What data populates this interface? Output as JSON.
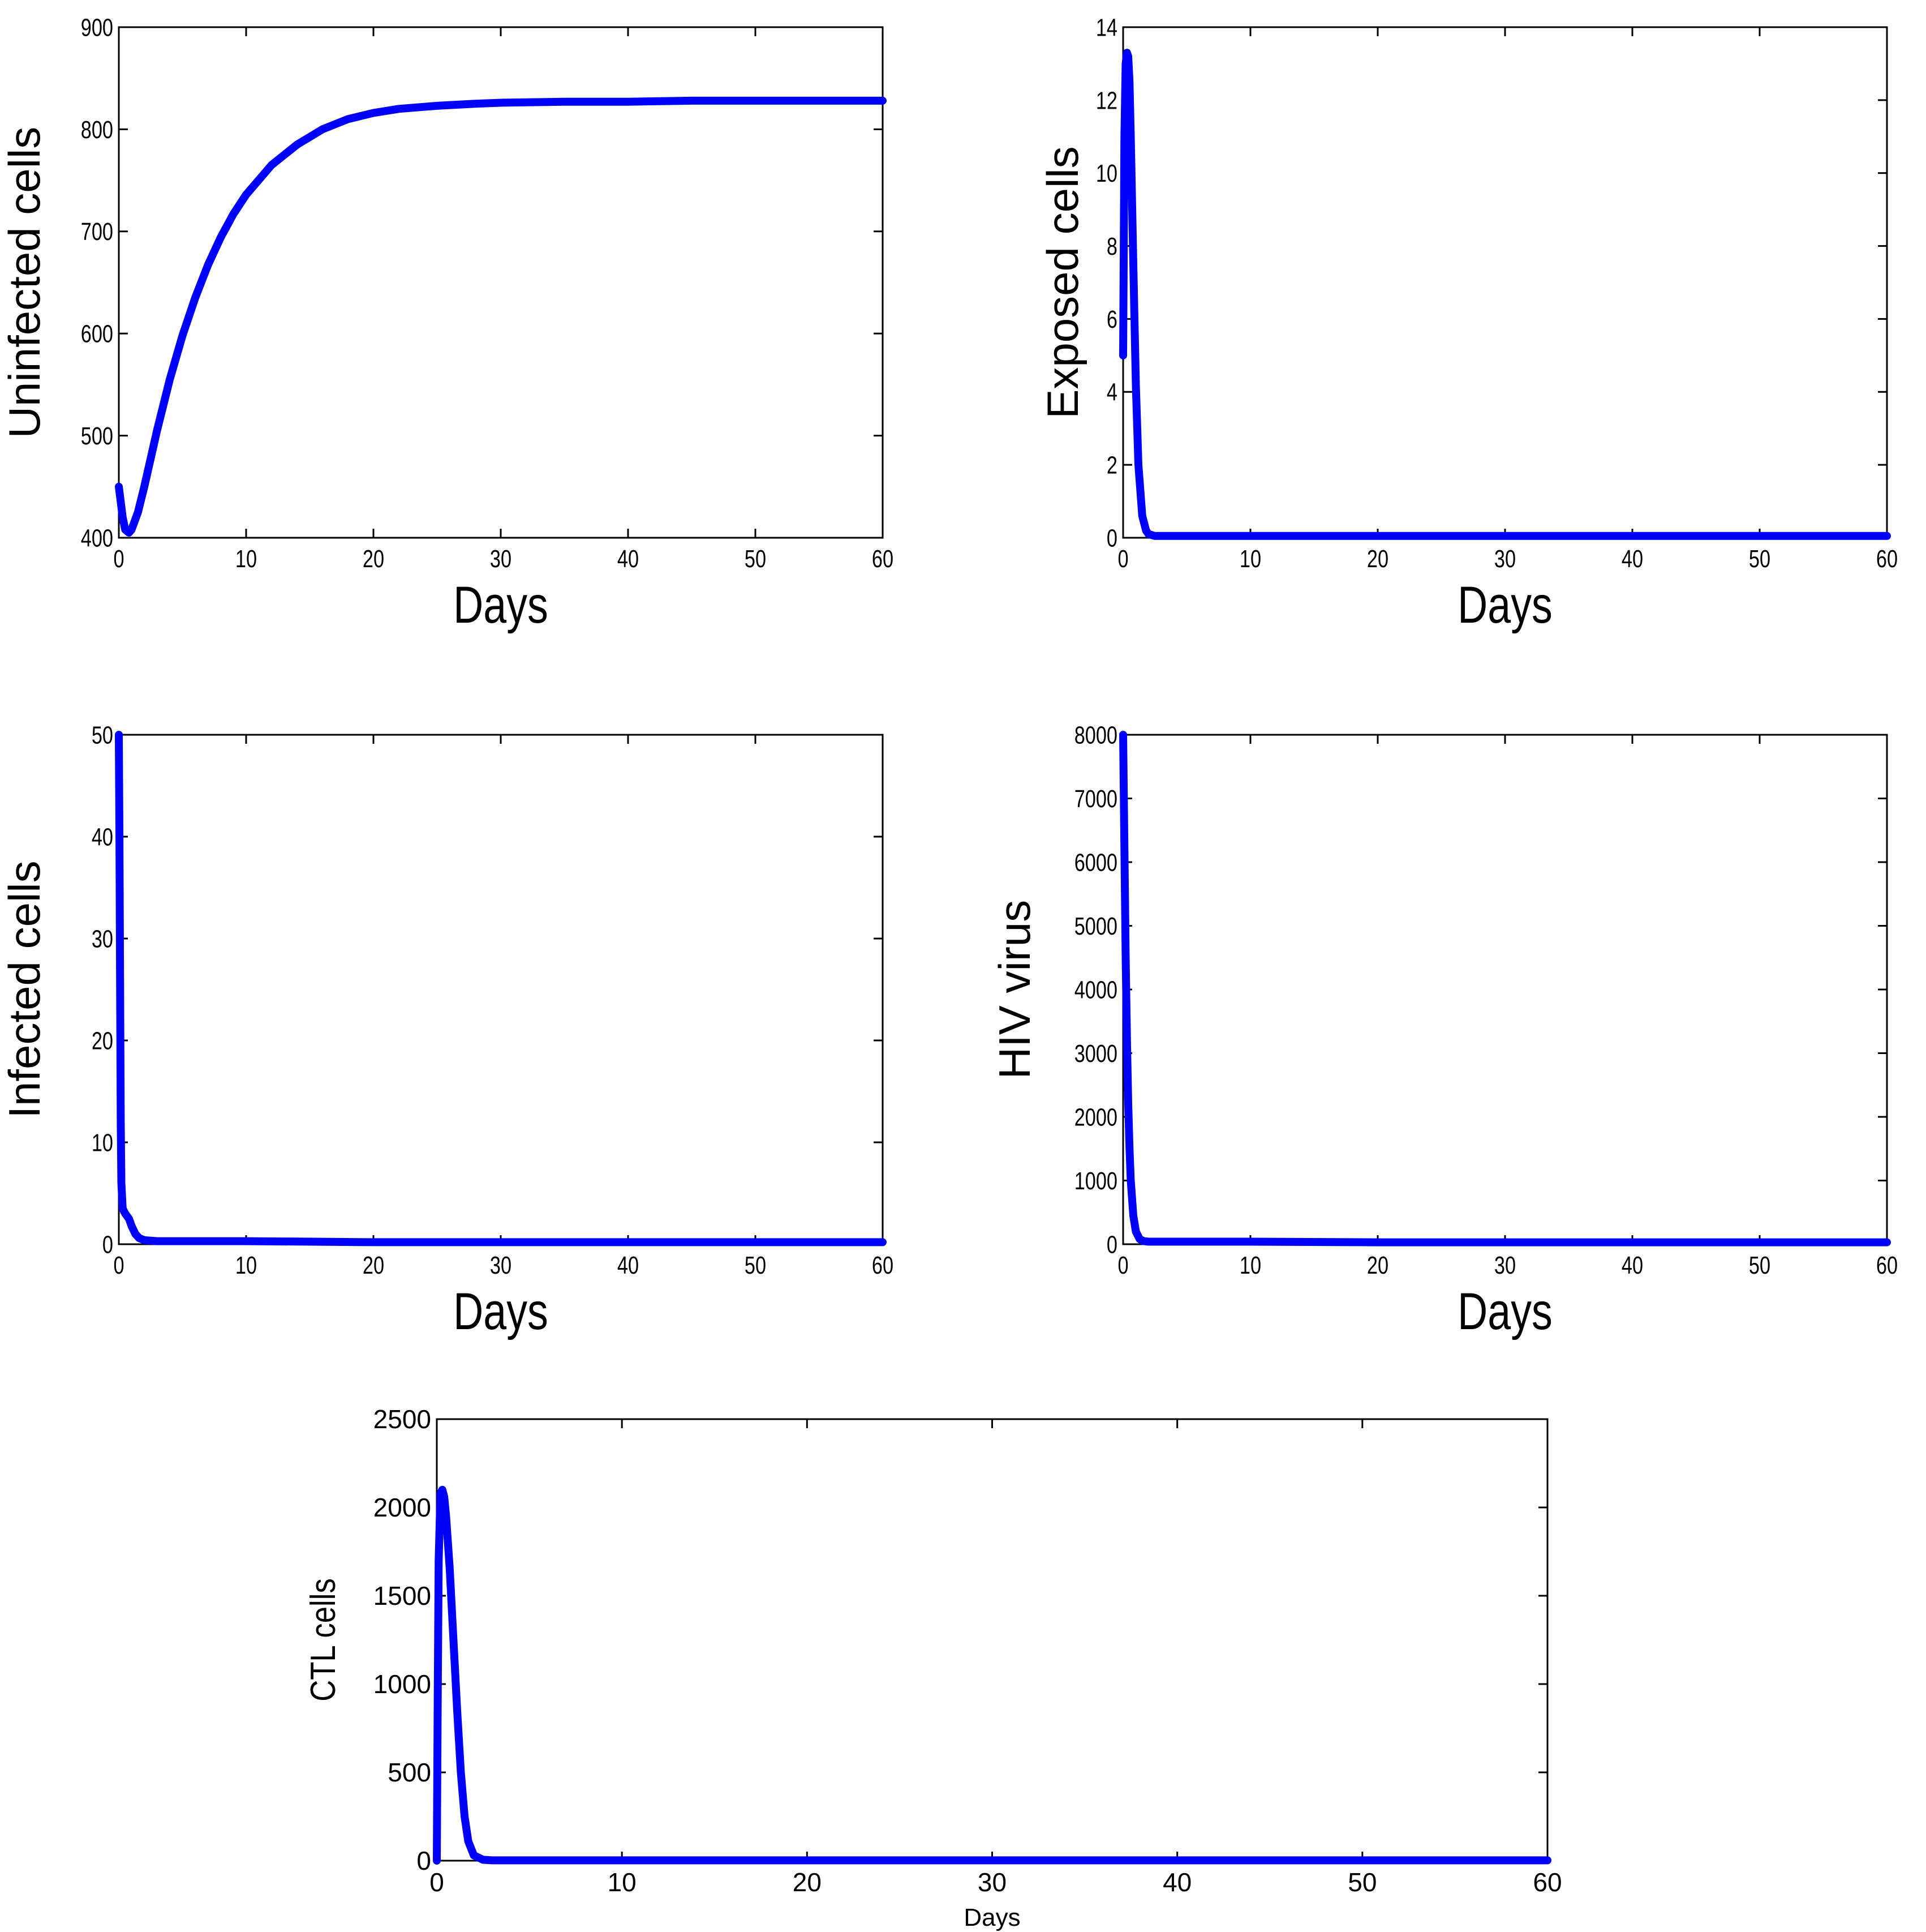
{
  "chart_data": [
    {
      "id": "uninfected",
      "type": "line",
      "title": "",
      "xlabel": "Days",
      "ylabel": "Uninfected cells",
      "xlim": [
        0,
        60
      ],
      "ylim": [
        400,
        900
      ],
      "xticks": [
        0,
        10,
        20,
        30,
        40,
        50,
        60
      ],
      "yticks": [
        400,
        500,
        600,
        700,
        800,
        900
      ],
      "grid": false,
      "series": [
        {
          "name": "Uninfected cells",
          "color": "#0000ff",
          "x": [
            0,
            0.3,
            0.5,
            0.8,
            1,
            1.5,
            2,
            3,
            4,
            5,
            6,
            7,
            8,
            9,
            10,
            12,
            14,
            16,
            18,
            20,
            22,
            25,
            28,
            30,
            35,
            40,
            45,
            50,
            55,
            60
          ],
          "y": [
            450,
            420,
            408,
            405,
            408,
            425,
            450,
            505,
            555,
            598,
            635,
            667,
            694,
            717,
            736,
            765,
            785,
            800,
            810,
            816,
            820,
            823,
            825,
            826,
            827,
            827,
            828,
            828,
            828,
            828
          ]
        }
      ]
    },
    {
      "id": "exposed",
      "type": "line",
      "title": "",
      "xlabel": "Days",
      "ylabel": "Exposed cells",
      "xlim": [
        0,
        60
      ],
      "ylim": [
        0,
        14
      ],
      "xticks": [
        0,
        10,
        20,
        30,
        40,
        50,
        60
      ],
      "yticks": [
        0,
        2,
        4,
        6,
        8,
        10,
        12,
        14
      ],
      "grid": false,
      "series": [
        {
          "name": "Exposed cells",
          "color": "#0000ff",
          "x": [
            0,
            0.1,
            0.2,
            0.3,
            0.4,
            0.5,
            0.6,
            0.8,
            1,
            1.2,
            1.5,
            1.8,
            2,
            2.5,
            3,
            5,
            10,
            20,
            30,
            40,
            50,
            60
          ],
          "y": [
            5,
            11,
            13,
            13.3,
            13.2,
            12.5,
            11,
            7.5,
            4.2,
            2,
            0.6,
            0.2,
            0.1,
            0.05,
            0.05,
            0.05,
            0.05,
            0.05,
            0.05,
            0.05,
            0.05,
            0.05
          ]
        }
      ]
    },
    {
      "id": "infected",
      "type": "line",
      "title": "",
      "xlabel": "Days",
      "ylabel": "Infected cells",
      "xlim": [
        0,
        60
      ],
      "ylim": [
        0,
        50
      ],
      "xticks": [
        0,
        10,
        20,
        30,
        40,
        50,
        60
      ],
      "yticks": [
        0,
        10,
        20,
        30,
        40,
        50
      ],
      "grid": false,
      "series": [
        {
          "name": "Infected cells",
          "color": "#0000ff",
          "x": [
            0,
            0.05,
            0.1,
            0.15,
            0.2,
            0.3,
            0.5,
            0.8,
            1,
            1.3,
            1.6,
            2,
            3,
            5,
            10,
            20,
            30,
            40,
            50,
            60
          ],
          "y": [
            50,
            40,
            25,
            12,
            6,
            3.5,
            3,
            2.5,
            1.8,
            1,
            0.6,
            0.4,
            0.3,
            0.3,
            0.3,
            0.2,
            0.2,
            0.2,
            0.2,
            0.2
          ]
        }
      ]
    },
    {
      "id": "hiv",
      "type": "line",
      "title": "",
      "xlabel": "Days",
      "ylabel": "HIV virus",
      "xlim": [
        0,
        60
      ],
      "ylim": [
        0,
        8000
      ],
      "xticks": [
        0,
        10,
        20,
        30,
        40,
        50,
        60
      ],
      "yticks": [
        0,
        1000,
        2000,
        3000,
        4000,
        5000,
        6000,
        7000,
        8000
      ],
      "grid": false,
      "series": [
        {
          "name": "HIV virus",
          "color": "#0000ff",
          "x": [
            0,
            0.1,
            0.2,
            0.3,
            0.4,
            0.5,
            0.6,
            0.8,
            1,
            1.3,
            1.6,
            2,
            5,
            10,
            20,
            30,
            40,
            50,
            60
          ],
          "y": [
            8000,
            6200,
            4500,
            3200,
            2200,
            1500,
            1000,
            450,
            200,
            80,
            50,
            40,
            40,
            40,
            30,
            30,
            30,
            30,
            30
          ]
        }
      ]
    },
    {
      "id": "ctl",
      "type": "line",
      "title": "",
      "xlabel": "Days",
      "ylabel": "CTL cells",
      "xlim": [
        0,
        60
      ],
      "ylim": [
        0,
        2500
      ],
      "xticks": [
        0,
        10,
        20,
        30,
        40,
        50,
        60
      ],
      "yticks": [
        0,
        500,
        1000,
        1500,
        2000,
        2500
      ],
      "grid": false,
      "series": [
        {
          "name": "CTL cells",
          "color": "#0000ff",
          "x": [
            0,
            0.05,
            0.1,
            0.2,
            0.3,
            0.4,
            0.5,
            0.7,
            0.9,
            1.1,
            1.3,
            1.5,
            1.7,
            2,
            2.5,
            3,
            5,
            10,
            20,
            30,
            40,
            50,
            60
          ],
          "y": [
            0,
            900,
            1700,
            2080,
            2100,
            2060,
            1950,
            1650,
            1250,
            850,
            500,
            250,
            110,
            30,
            5,
            2,
            2,
            2,
            2,
            2,
            2,
            2,
            2
          ]
        }
      ]
    }
  ]
}
